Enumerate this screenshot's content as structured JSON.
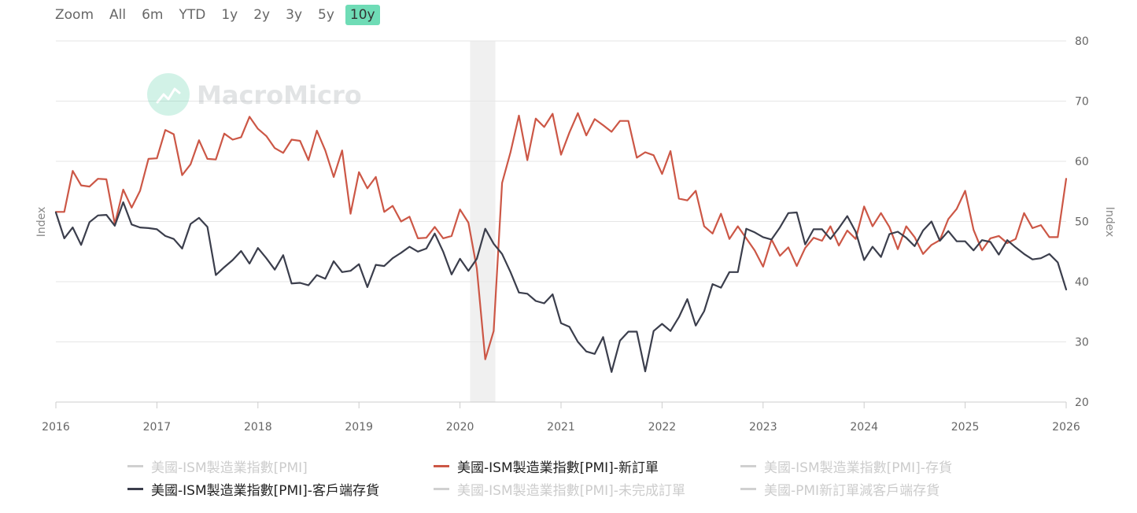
{
  "zoom": {
    "label": "Zoom",
    "options": [
      "All",
      "6m",
      "YTD",
      "1y",
      "2y",
      "3y",
      "5y",
      "10y"
    ],
    "selected": "10y"
  },
  "watermark": "MacroMicro",
  "chart_data": {
    "type": "line",
    "title": "",
    "ylabel_left": "Index",
    "ylabel_right": "Index",
    "ylim": [
      20,
      80
    ],
    "yticks": [
      20,
      30,
      40,
      50,
      60,
      70,
      80
    ],
    "xlim": [
      2016.0,
      2026.0
    ],
    "xticks": [
      "2016",
      "2017",
      "2018",
      "2019",
      "2020",
      "2021",
      "2022",
      "2023",
      "2024",
      "2025",
      "2026"
    ],
    "recession": [
      2020.1,
      2020.35
    ],
    "series": [
      {
        "name": "美國-ISM製造業指數[PMI]-新訂單",
        "color": "#cc5746",
        "values": [
          51.6,
          51.6,
          58.4,
          56.0,
          55.8,
          57.1,
          57.0,
          49.6,
          55.3,
          52.3,
          55.1,
          60.4,
          60.5,
          65.2,
          64.5,
          57.7,
          59.5,
          63.5,
          60.4,
          60.3,
          64.6,
          63.6,
          64.0,
          67.4,
          65.4,
          64.2,
          62.2,
          61.4,
          63.6,
          63.4,
          60.2,
          65.1,
          61.8,
          57.4,
          61.8,
          51.3,
          58.2,
          55.5,
          57.4,
          51.6,
          52.6,
          50.0,
          50.8,
          47.2,
          47.3,
          49.1,
          47.2,
          47.6,
          52.0,
          49.8,
          42.2,
          27.1,
          31.8,
          56.4,
          61.5,
          67.6,
          60.2,
          67.1,
          65.7,
          67.9,
          61.1,
          64.8,
          68.0,
          64.3,
          67.0,
          66.0,
          64.9,
          66.7,
          66.7,
          60.6,
          61.5,
          61.0,
          57.9,
          61.7,
          53.8,
          53.5,
          55.1,
          49.2,
          48.0,
          51.3,
          47.1,
          49.2,
          47.2,
          45.2,
          42.5,
          47.0,
          44.3,
          45.7,
          42.6,
          45.6,
          47.3,
          46.8,
          49.2,
          46.0,
          48.5,
          47.1,
          52.5,
          49.2,
          51.4,
          49.1,
          45.4,
          49.2,
          47.4,
          44.6,
          46.1,
          46.9,
          50.4,
          52.1,
          55.1,
          48.6,
          45.2,
          47.2,
          47.6,
          46.4,
          47.1,
          51.4,
          48.9,
          49.4,
          47.4,
          47.4,
          57.1
        ]
      },
      {
        "name": "美國-ISM製造業指數[PMI]-客戶端存貨",
        "color": "#3b3e4c",
        "values": [
          51.5,
          47.2,
          49.0,
          46.1,
          49.9,
          51.0,
          51.1,
          49.3,
          53.2,
          49.5,
          49.0,
          48.9,
          48.7,
          47.6,
          47.1,
          45.5,
          49.6,
          50.6,
          49.1,
          41.1,
          42.4,
          43.6,
          45.1,
          43.0,
          45.6,
          43.9,
          42.0,
          44.4,
          39.7,
          39.8,
          39.4,
          41.1,
          40.5,
          43.4,
          41.6,
          41.8,
          42.9,
          39.1,
          42.8,
          42.6,
          43.9,
          44.8,
          45.8,
          45.0,
          45.5,
          48.0,
          45.0,
          41.2,
          43.8,
          41.8,
          43.8,
          48.8,
          46.3,
          44.6,
          41.6,
          38.2,
          38.0,
          36.8,
          36.4,
          37.9,
          33.1,
          32.5,
          30.0,
          28.4,
          28.0,
          30.8,
          25.0,
          30.2,
          31.7,
          31.7,
          25.1,
          31.8,
          33.0,
          31.8,
          34.1,
          37.1,
          32.7,
          35.1,
          39.6,
          39.0,
          41.6,
          41.6,
          48.8,
          48.2,
          47.4,
          47.0,
          49.0,
          51.4,
          51.5,
          46.2,
          48.7,
          48.7,
          47.1,
          48.9,
          50.9,
          48.3,
          43.6,
          45.8,
          44.1,
          47.9,
          48.3,
          47.3,
          45.9,
          48.5,
          50.0,
          46.8,
          48.4,
          46.7,
          46.7,
          45.2,
          46.9,
          46.6,
          44.5,
          46.9,
          45.7,
          44.6,
          43.7,
          43.9,
          44.6,
          43.2,
          38.7
        ]
      }
    ],
    "legend": [
      {
        "name": "美國-ISM製造業指數[PMI]",
        "visible": false
      },
      {
        "name": "美國-ISM製造業指數[PMI]-新訂單",
        "visible": true,
        "color": "#cc5746"
      },
      {
        "name": "美國-ISM製造業指數[PMI]-存貨",
        "visible": false
      },
      {
        "name": "美國-ISM製造業指數[PMI]-客戶端存貨",
        "visible": true,
        "color": "#3b3e4c"
      },
      {
        "name": "美國-ISM製造業指數[PMI]-未完成訂單",
        "visible": false
      },
      {
        "name": "美國-PMI新訂單減客戶端存貨",
        "visible": false
      }
    ]
  }
}
